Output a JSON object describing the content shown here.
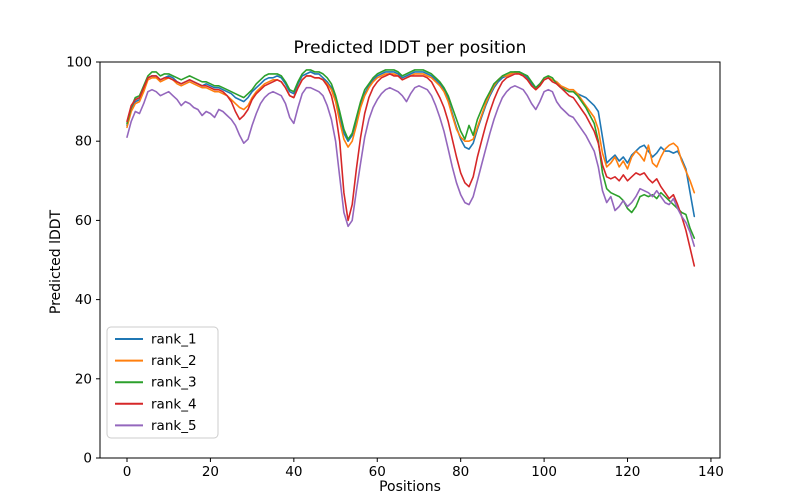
{
  "title": "Predicted lDDT per position",
  "axes": {
    "xlabel": "Positions",
    "ylabel": "Predicted lDDT",
    "x_tick_labels": [
      "0",
      "20",
      "40",
      "60",
      "80",
      "100",
      "120",
      "140"
    ],
    "y_tick_labels": [
      "0",
      "20",
      "40",
      "60",
      "80",
      "100"
    ]
  },
  "chart_data": {
    "type": "line",
    "title": "Predicted lDDT per position",
    "xlabel": "Positions",
    "ylabel": "Predicted lDDT",
    "xlim": [
      -6.8,
      143.8
    ],
    "ylim": [
      0,
      100
    ],
    "x_ticks": [
      0,
      20,
      40,
      60,
      80,
      100,
      120,
      140
    ],
    "y_ticks": [
      0,
      20,
      40,
      60,
      80,
      100
    ],
    "grid": false,
    "legend_position": "lower left",
    "x_start": 0,
    "x_step": 1,
    "series": [
      {
        "name": "rank_1",
        "color": "#1f77b4",
        "values": [
          84,
          88,
          90,
          90.5,
          93,
          96,
          96.5,
          96.5,
          95.5,
          96,
          96.5,
          96,
          95,
          94.5,
          95,
          95.5,
          95,
          94.5,
          94,
          94.5,
          94,
          93.5,
          93.5,
          93,
          92.5,
          92,
          91,
          90.5,
          90,
          91,
          92.5,
          93.5,
          94.5,
          95.5,
          96,
          96,
          96.5,
          96,
          94.5,
          92.5,
          92,
          94.5,
          96.5,
          97,
          97.5,
          97,
          97,
          96,
          95,
          93.5,
          90.5,
          86.5,
          82,
          80,
          81.5,
          85,
          89,
          92,
          94,
          95.5,
          96.5,
          97,
          97.5,
          97.5,
          97.5,
          97,
          96,
          96.5,
          97,
          97.5,
          97.5,
          97.5,
          97,
          96.5,
          95.5,
          94.5,
          93,
          90.5,
          87,
          83.5,
          80.5,
          78.5,
          78,
          79.5,
          83,
          86,
          89,
          91.5,
          93.5,
          95,
          96,
          96.5,
          97,
          97.5,
          97.5,
          97,
          96,
          94.5,
          93.5,
          94.5,
          95.5,
          96,
          95.5,
          95,
          94,
          93,
          92.5,
          92.5,
          92,
          91.5,
          91,
          90,
          89,
          87.5,
          81,
          74.5,
          75.5,
          76.5,
          75,
          76,
          74.5,
          76.5,
          77.5,
          78.5,
          79,
          77.5,
          76,
          77,
          78.5,
          77.5,
          77.5,
          77,
          77.5,
          75.5,
          73,
          67,
          61
        ]
      },
      {
        "name": "rank_2",
        "color": "#ff7f0e",
        "values": [
          83.5,
          87.5,
          89.5,
          90,
          92.5,
          95.5,
          96,
          96,
          95,
          95.5,
          96,
          95.5,
          94.5,
          94,
          94.5,
          95,
          94.5,
          94,
          93.5,
          93.5,
          93,
          92.5,
          92.5,
          92,
          91.5,
          90.5,
          89.5,
          88.5,
          88,
          89,
          91,
          92.5,
          93.5,
          94.5,
          95,
          95.5,
          95.5,
          95,
          93.5,
          91.5,
          91,
          93.5,
          95.5,
          96.5,
          96.5,
          96,
          96,
          95.5,
          94.5,
          93,
          90,
          85,
          80.5,
          78.5,
          80,
          84,
          88.5,
          91.5,
          93.5,
          95,
          96,
          96.5,
          97,
          97,
          97,
          96.5,
          95.5,
          96,
          96.5,
          97,
          97,
          97,
          96.5,
          96,
          95,
          94,
          92.5,
          90,
          86.5,
          83,
          81,
          80,
          80,
          80.5,
          83.5,
          86.5,
          89.5,
          92,
          94,
          95.5,
          96.5,
          96.5,
          97,
          97.5,
          97,
          96.5,
          95.5,
          94,
          93,
          94,
          95.5,
          96,
          95.5,
          95,
          94,
          93.5,
          93,
          93,
          92,
          90.5,
          89,
          87.5,
          86,
          83,
          77,
          73.5,
          74.5,
          76,
          73.5,
          75,
          73,
          76,
          77.5,
          76.5,
          75,
          79,
          74.5,
          73.5,
          76,
          78,
          79,
          79.5,
          78.5,
          75,
          72.5,
          70,
          67
        ]
      },
      {
        "name": "rank_3",
        "color": "#2ca02c",
        "values": [
          84.5,
          88.5,
          91,
          91.5,
          94,
          96.5,
          97.5,
          97.5,
          96.5,
          97,
          97,
          96.5,
          96,
          95.5,
          96,
          96.5,
          96,
          95.5,
          95,
          95,
          94.5,
          94,
          94,
          93.5,
          93,
          92.5,
          92,
          91.5,
          91,
          92,
          93,
          94.5,
          95.5,
          96.5,
          97,
          97,
          97,
          96.5,
          95,
          93,
          92.5,
          95,
          97,
          98,
          98,
          97.5,
          97.5,
          97,
          96,
          94.5,
          91.5,
          87.5,
          83,
          80.5,
          82,
          86,
          90,
          93,
          94.5,
          96,
          97,
          97.5,
          98,
          98,
          98,
          97.5,
          96.5,
          97,
          97.5,
          98,
          98,
          98,
          97.5,
          97,
          96,
          95,
          93.5,
          91.5,
          88.5,
          85.5,
          82.5,
          80.5,
          84,
          81.5,
          85.5,
          88,
          90.5,
          92.5,
          94.5,
          95.5,
          96.5,
          97,
          97.5,
          97.5,
          97.5,
          97,
          96.5,
          95,
          93.5,
          94.5,
          96,
          96.5,
          96,
          94.5,
          93.5,
          93,
          92.5,
          92.5,
          91.5,
          90,
          88.5,
          86.5,
          84.5,
          80,
          72,
          68,
          67,
          66.5,
          66,
          65,
          63,
          62,
          63.5,
          66,
          66.5,
          66,
          66.5,
          65.5,
          67,
          66,
          65,
          64,
          63,
          62,
          61.5,
          58,
          55.5
        ]
      },
      {
        "name": "rank_4",
        "color": "#d62728",
        "values": [
          85,
          89,
          90.5,
          91,
          93.5,
          96,
          96.5,
          96.5,
          95.5,
          96,
          96,
          95.5,
          95,
          94.5,
          95,
          95.5,
          95,
          94.5,
          94,
          94,
          93.5,
          93,
          93,
          92.5,
          91.5,
          90,
          87.5,
          85.5,
          86.5,
          88,
          90.5,
          92,
          93,
          94,
          94.5,
          95,
          95.5,
          95,
          93.5,
          91.5,
          91,
          93.5,
          95.5,
          96.5,
          96.5,
          96,
          96,
          95.5,
          94,
          91.5,
          87,
          80,
          67,
          60,
          64,
          73,
          81,
          87,
          91,
          93.5,
          95,
          96,
          96.5,
          97,
          96.5,
          96.5,
          95.5,
          96,
          96.5,
          96.5,
          96.5,
          96.5,
          96,
          95,
          93,
          91,
          88.5,
          85,
          80.5,
          76,
          72,
          69.5,
          68.5,
          71,
          76,
          80,
          84,
          87.5,
          90.5,
          93,
          95,
          96,
          96.5,
          97,
          97,
          96.5,
          95.5,
          94,
          93,
          94,
          95.5,
          96,
          95,
          94.5,
          93.5,
          92.5,
          91.5,
          91,
          89.5,
          88,
          86.5,
          84.5,
          82.5,
          79.5,
          74,
          71,
          70.5,
          71,
          70,
          71.5,
          70,
          71,
          72,
          71.5,
          72,
          70.5,
          69.5,
          70.5,
          68.5,
          67,
          65.5,
          66.5,
          64,
          61,
          57.5,
          53,
          48.5
        ]
      },
      {
        "name": "rank_5",
        "color": "#9467bd",
        "values": [
          81,
          85,
          87.5,
          87,
          89.5,
          92.5,
          93,
          92.5,
          91.5,
          92,
          92.5,
          91.5,
          90.5,
          89,
          90,
          89.5,
          88.5,
          88,
          86.5,
          87.5,
          87,
          86,
          88,
          87.5,
          86.5,
          85.5,
          84,
          81.5,
          79.5,
          80.5,
          84,
          87,
          89.5,
          91,
          92,
          92.5,
          92,
          91.5,
          89.5,
          86,
          84.5,
          88.5,
          92,
          93.5,
          93.5,
          93,
          92.5,
          91.5,
          89,
          85.5,
          80,
          71,
          62,
          58.5,
          60,
          67.5,
          74.5,
          81,
          85.5,
          88.5,
          90.5,
          92,
          93,
          93.5,
          93,
          92.5,
          91.5,
          90,
          92,
          93.5,
          94,
          93.5,
          93,
          91.5,
          89,
          86,
          82.5,
          78,
          73.5,
          69.5,
          66.5,
          64.5,
          64,
          66,
          70,
          74,
          78,
          82,
          85.5,
          88.5,
          91,
          92.5,
          93.5,
          94,
          93.5,
          93,
          91.5,
          89.5,
          88,
          90,
          92.5,
          93,
          92.5,
          90,
          88.5,
          87.5,
          86.5,
          86,
          84.5,
          83,
          81.5,
          79.5,
          77.5,
          73.5,
          67.5,
          64.5,
          66,
          62.5,
          63.5,
          65,
          63.5,
          64.5,
          66,
          68,
          67.5,
          67,
          66,
          67.5,
          66,
          64.5,
          64,
          65.5,
          63,
          61,
          59.5,
          57,
          53.5
        ]
      }
    ]
  }
}
